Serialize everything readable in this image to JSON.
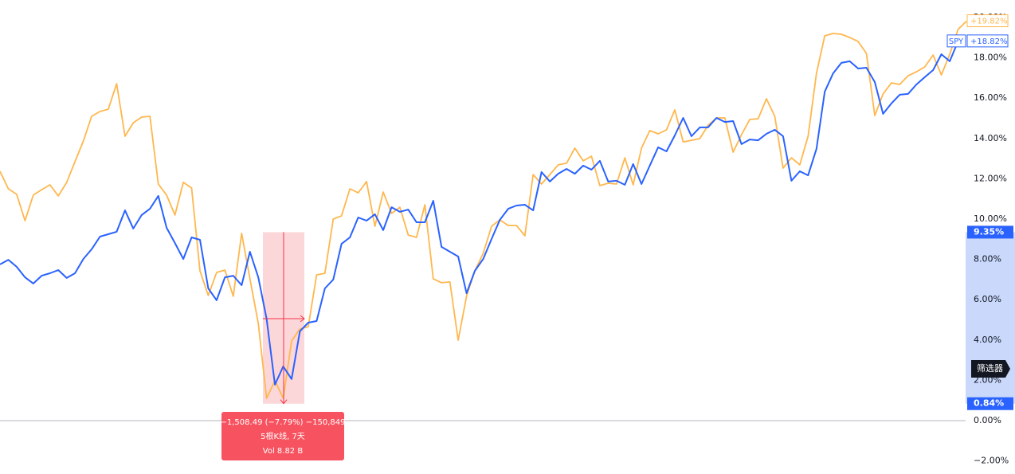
{
  "chart_data": {
    "type": "line",
    "series": [
      {
        "color": "#ffb74d",
        "values": [
          12.37,
          11.5,
          11.23,
          9.92,
          11.19,
          11.46,
          11.7,
          11.15,
          11.82,
          12.85,
          13.87,
          15.1,
          15.34,
          15.45,
          16.72,
          14.11,
          14.78,
          15.06,
          15.1,
          11.74,
          11.19,
          10.2,
          11.82,
          11.54,
          7.43,
          6.21,
          7.35,
          7.47,
          6.17,
          9.29,
          7.04,
          4.82,
          1.11,
          1.98,
          1.11,
          3.95,
          4.55,
          4.66,
          7.23,
          7.31,
          10.0,
          10.16,
          11.5,
          11.3,
          11.86,
          9.64,
          11.34,
          10.28,
          10.59,
          9.21,
          9.09,
          10.71,
          7.04,
          6.84,
          6.88,
          3.99,
          6.17,
          7.43,
          8.3,
          9.64,
          9.96,
          9.68,
          9.68,
          9.17,
          12.21,
          11.74,
          12.21,
          12.69,
          12.77,
          13.52,
          12.89,
          13.12,
          11.66,
          11.78,
          11.74,
          13.04,
          11.7,
          13.52,
          14.39,
          14.23,
          14.43,
          15.42,
          13.83,
          13.91,
          13.99,
          14.66,
          15.02,
          15.02,
          13.32,
          14.19,
          14.94,
          14.98,
          15.97,
          15.1,
          12.53,
          13.04,
          12.69,
          14.11,
          17.23,
          19.09,
          19.21,
          19.17,
          19.01,
          18.81,
          18.22,
          15.14,
          16.21,
          16.76,
          16.68,
          17.11,
          17.31,
          17.55,
          18.14,
          17.15,
          18.18,
          19.41,
          19.82
        ],
        "value_labels": [
          null,
          null,
          null,
          null,
          null,
          null,
          null,
          null,
          null,
          null,
          null,
          null,
          null,
          null,
          null,
          null,
          null,
          null,
          null,
          null,
          null,
          null,
          null,
          null,
          null,
          null,
          null,
          null,
          null,
          null,
          null,
          null,
          null,
          null,
          null,
          null,
          null,
          null,
          null,
          null,
          null,
          null,
          null,
          null,
          null,
          null,
          null,
          null,
          null,
          null,
          null,
          null,
          null,
          null,
          null,
          null,
          null,
          null,
          null,
          null,
          null,
          null,
          null,
          null,
          null,
          null,
          null,
          null,
          null,
          null,
          null,
          null,
          null,
          null,
          null,
          null,
          null,
          null,
          null,
          null,
          null,
          null,
          null,
          null,
          null,
          null,
          null,
          null,
          null,
          null,
          null,
          null,
          null,
          null,
          null,
          null,
          null,
          null,
          null,
          null,
          null,
          null,
          null,
          null,
          null,
          null,
          null,
          null,
          null,
          null,
          null,
          null,
          null,
          null,
          null,
          null,
          "+19.82%"
        ]
      },
      {
        "name": "SPY",
        "color": "#2962ff",
        "values": [
          7.75,
          7.98,
          7.63,
          7.11,
          6.8,
          7.19,
          7.31,
          7.47,
          7.08,
          7.31,
          8.02,
          8.5,
          9.13,
          9.25,
          9.37,
          10.43,
          9.53,
          10.2,
          10.51,
          11.15,
          9.57,
          8.81,
          8.02,
          9.09,
          8.97,
          6.56,
          5.97,
          7.11,
          7.19,
          6.72,
          8.38,
          7.11,
          5.06,
          1.78,
          2.69,
          2.06,
          4.43,
          4.86,
          4.94,
          6.56,
          7.0,
          8.77,
          9.09,
          10.08,
          9.92,
          10.24,
          9.45,
          10.59,
          10.36,
          10.47,
          9.84,
          9.84,
          10.91,
          8.62,
          8.38,
          8.14,
          6.32,
          7.43,
          8.02,
          9.01,
          9.96,
          10.51,
          10.67,
          10.71,
          10.43,
          12.33,
          11.86,
          12.25,
          12.49,
          12.25,
          12.65,
          12.45,
          12.89,
          11.86,
          11.9,
          11.7,
          12.73,
          11.74,
          12.65,
          13.56,
          13.36,
          14.15,
          15.02,
          14.11,
          14.55,
          14.55,
          15.02,
          14.82,
          14.86,
          13.72,
          13.95,
          13.91,
          14.23,
          14.43,
          14.11,
          11.9,
          12.37,
          12.17,
          13.48,
          16.32,
          17.23,
          17.75,
          17.83,
          17.47,
          17.51,
          16.8,
          15.22,
          15.74,
          16.17,
          16.21,
          16.68,
          17.04,
          17.39,
          18.18,
          17.83,
          18.82,
          null
        ],
        "value_labels": [
          null,
          null,
          null,
          null,
          null,
          null,
          null,
          null,
          null,
          null,
          null,
          null,
          null,
          null,
          null,
          null,
          null,
          null,
          null,
          null,
          null,
          null,
          null,
          null,
          null,
          null,
          null,
          null,
          null,
          null,
          null,
          null,
          null,
          null,
          null,
          null,
          null,
          null,
          null,
          null,
          null,
          null,
          null,
          null,
          null,
          null,
          null,
          null,
          null,
          null,
          null,
          null,
          null,
          null,
          null,
          null,
          null,
          null,
          null,
          null,
          null,
          null,
          null,
          null,
          null,
          null,
          null,
          null,
          null,
          null,
          null,
          null,
          null,
          null,
          null,
          null,
          null,
          null,
          null,
          null,
          null,
          null,
          null,
          null,
          null,
          null,
          null,
          null,
          null,
          null,
          null,
          null,
          null,
          null,
          null,
          null,
          null,
          null,
          null,
          null,
          null,
          null,
          null,
          null,
          null,
          null,
          null,
          null,
          null,
          null,
          null,
          null,
          null,
          null,
          null,
          "+18.82%",
          null
        ]
      }
    ],
    "ylim": [
      -2.65,
      20.87
    ],
    "yticks": [
      {
        "value": -2,
        "label": "−2.00%"
      },
      {
        "value": 0,
        "label": "0.00%"
      },
      {
        "value": 2,
        "label": "2.00%"
      },
      {
        "value": 4,
        "label": "4.00%"
      },
      {
        "value": 6,
        "label": "6.00%"
      },
      {
        "value": 8,
        "label": "8.00%"
      },
      {
        "value": 10,
        "label": "10.00%"
      },
      {
        "value": 12,
        "label": "12.00%"
      },
      {
        "value": 14,
        "label": "14.00%"
      },
      {
        "value": 16,
        "label": "16.00%"
      },
      {
        "value": 18,
        "label": "18.00%"
      },
      {
        "value": 20,
        "label": "20.00%"
      }
    ],
    "zero_line": true,
    "measure": {
      "top": {
        "value": 9.35,
        "label": "9.35%"
      },
      "bottom": {
        "value": 0.84,
        "label": "0.84%"
      },
      "lines": [
        "−1,508.49 (−7.79%) −150,849",
        "5根K线, 7天",
        "Vol 8.82 B"
      ]
    },
    "filter_button": "筛选器"
  }
}
